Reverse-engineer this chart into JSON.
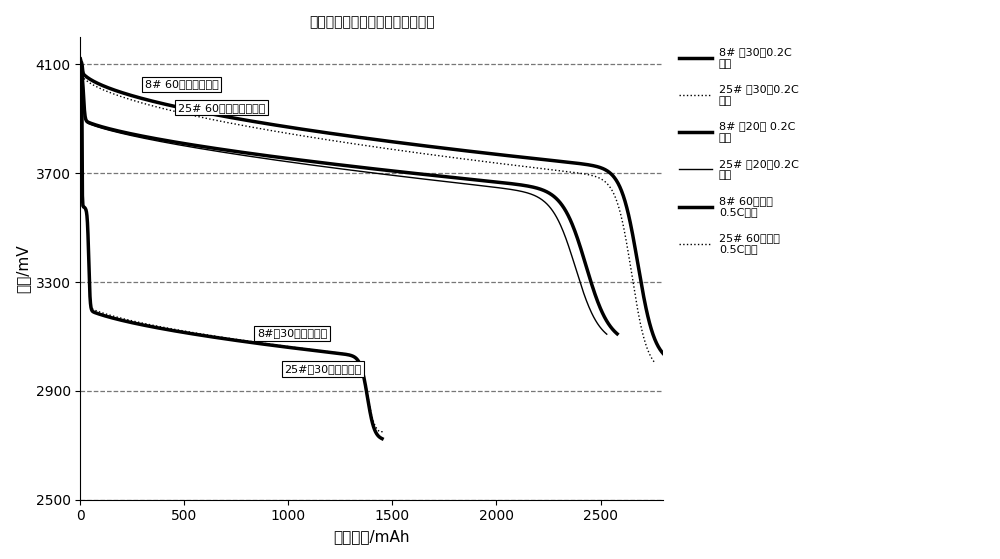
{
  "title": "实验组与对比组不同温度放电曲线",
  "xlabel": "放电容量/mAh",
  "ylabel": "电压/mV",
  "xlim": [
    0,
    2800
  ],
  "ylim": [
    2500,
    4200
  ],
  "yticks": [
    2500,
    2900,
    3300,
    3700,
    4100
  ],
  "xticks": [
    0,
    500,
    1000,
    1500,
    2000,
    2500
  ],
  "background_color": "#ffffff",
  "legend_entries": [
    {
      "label": "8# 负30度0.2C\n放电",
      "lw": 2.5,
      "ls": "solid"
    },
    {
      "label": "25# 负30度0.2C\n放电",
      "lw": 1.0,
      "ls": "dotted"
    },
    {
      "label": "8# 负20度 0.2C\n放电",
      "lw": 2.5,
      "ls": "solid"
    },
    {
      "label": "25# 负20度0.2C\n放电",
      "lw": 1.0,
      "ls": "solid"
    },
    {
      "label": "8# 60度高温\n0.5C放电",
      "lw": 2.5,
      "ls": "solid"
    },
    {
      "label": "25# 60度高温\n0.5C放电",
      "lw": 1.0,
      "ls": "dotted"
    }
  ],
  "ann1_text": "8# 60度高温放电曲",
  "ann1_x": 310,
  "ann1_y": 4015,
  "ann2_text": "25# 60度高温放电曲线",
  "ann2_x": 470,
  "ann2_y": 3930,
  "ann3_text": "8#负30度放电曲线",
  "ann3_x": 850,
  "ann3_y": 3100,
  "ann4_text": "25#负30度放电曲线",
  "ann4_x": 980,
  "ann4_y": 2970
}
